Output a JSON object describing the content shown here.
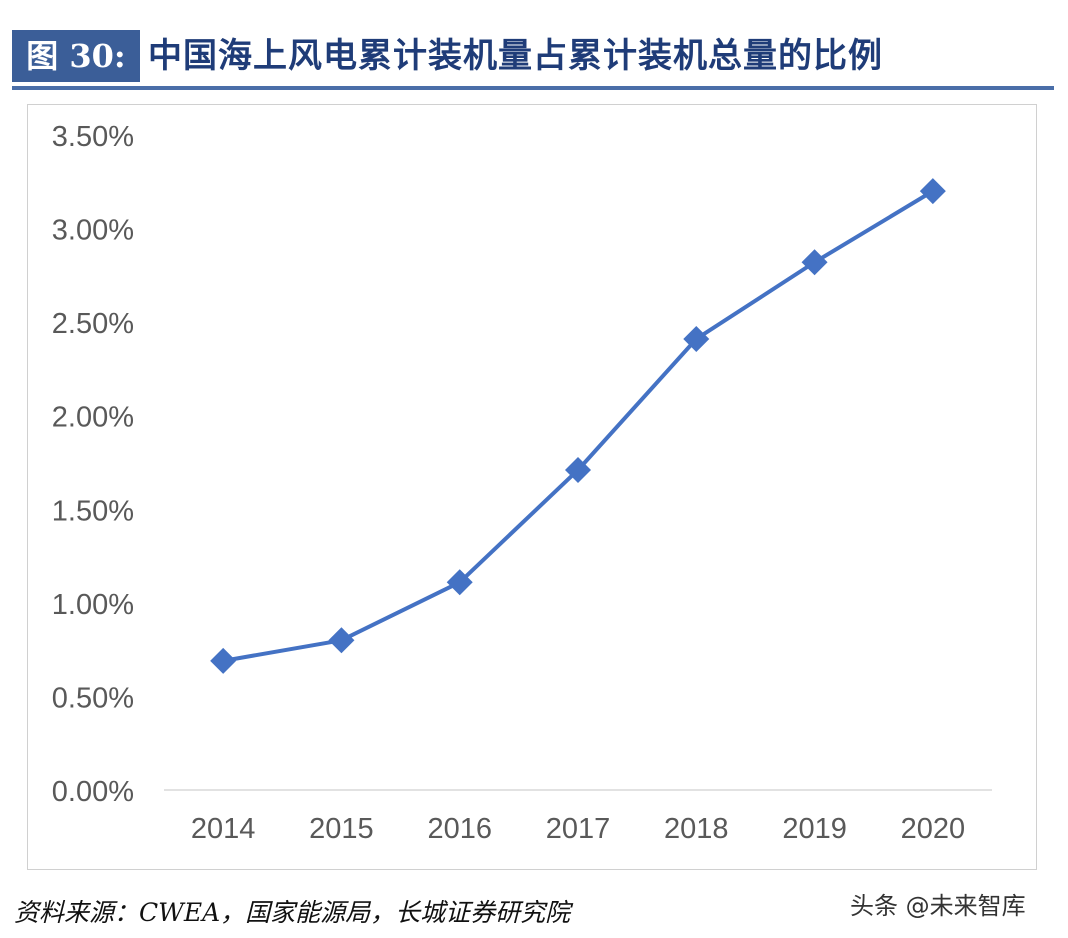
{
  "figure": {
    "label": "图 30:",
    "title": "中国海上风电累计装机量占累计装机总量的比例"
  },
  "source": "资料来源：CWEA，国家能源局，长城证券研究院",
  "watermark": "头条 @未来智库",
  "colors": {
    "series": "#4472c4",
    "label_box": "#3b5e98",
    "title": "#1f3c78"
  },
  "chart_data": {
    "type": "line",
    "categories": [
      "2014",
      "2015",
      "2016",
      "2017",
      "2018",
      "2019",
      "2020"
    ],
    "series": [
      {
        "values": [
          0.0069,
          0.008,
          0.0111,
          0.0171,
          0.0241,
          0.0282,
          0.032
        ]
      }
    ],
    "marker": "diamond",
    "ylim": [
      0,
      0.035
    ],
    "yticks": [
      0,
      0.005,
      0.01,
      0.015,
      0.02,
      0.025,
      0.03,
      0.035
    ],
    "ytick_labels": [
      "0.00%",
      "0.50%",
      "1.00%",
      "1.50%",
      "2.00%",
      "2.50%",
      "3.00%",
      "3.50%"
    ],
    "grid": false,
    "legend": "none"
  }
}
